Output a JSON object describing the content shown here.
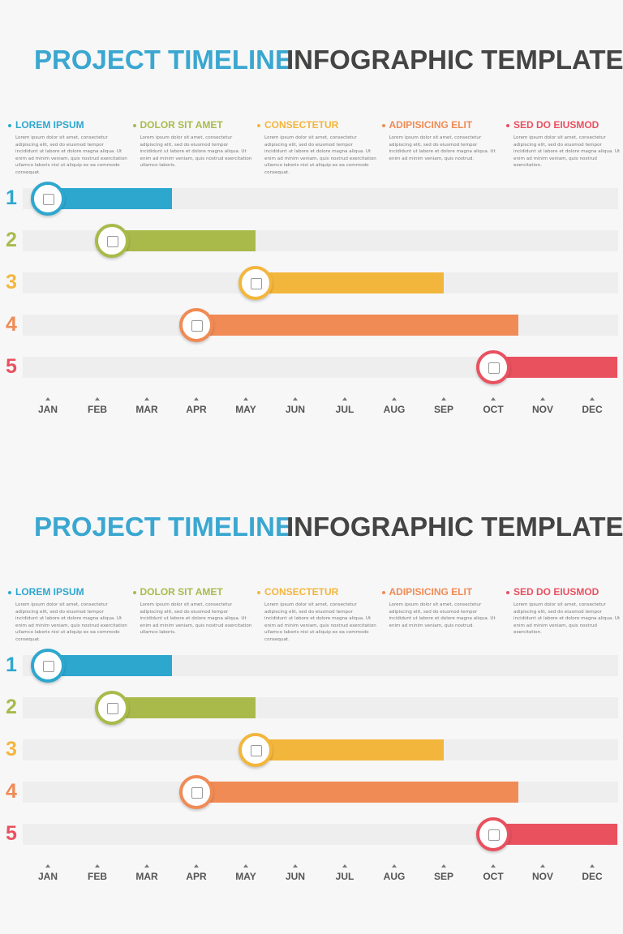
{
  "panels": [
    {
      "title_a": "PROJECT TIMELINE",
      "title_b": "INFOGRAPHIC TEMPLATE",
      "legend": [
        {
          "title": "LOREM IPSUM",
          "color": "#2ea7cf",
          "text": "Lorem ipsum dolor sit amet, consectetur adipiscing elit, sed do eiusmod tempor incididunt ut labore et dolore magna aliqua. Ut enim ad minim veniam, quis nostrud exercitation ullamco laboris nisi ut aliquip ex ea commodo consequat."
        },
        {
          "title": "DOLOR SIT AMET",
          "color": "#a9ba4b",
          "text": "Lorem ipsum dolor sit amet, consectetur adipiscing elit, sed do eiusmod tempor incididunt ut labore et dolore magna aliqua. Ut enim ad minim veniam, quis nostrud exercitation ullamco laboris."
        },
        {
          "title": "CONSECTETUR",
          "color": "#f3b63c",
          "text": "Lorem ipsum dolor sit amet, consectetur adipiscing elit, sed do eiusmod tempor incididunt ut labore et dolore magna aliqua. Ut enim ad minim veniam, quis nostrud exercitation ullamco laboris nisi ut aliquip ex ea commodo consequat."
        },
        {
          "title": "ADIPISICING ELIT",
          "color": "#f08b55",
          "text": "Lorem ipsum dolor sit amet, consectetur adipiscing elit, sed do eiusmod tempor incididunt ut labore et dolore magna aliqua. Ut enim ad minim veniam, quis nostrud."
        },
        {
          "title": "SED DO EIUSMOD",
          "color": "#e9515f",
          "text": "Lorem ipsum dolor sit amet, consectetur adipiscing elit, sed do eiusmod tempor incididunt ut labore et dolore magna aliqua. Ut enim ad minim veniam, quis nostrud exercitation."
        }
      ],
      "rows": [
        {
          "number": "1",
          "start": 0,
          "end": 2.5
        },
        {
          "number": "2",
          "start": 1.3,
          "end": 4.2
        },
        {
          "number": "3",
          "start": 4.2,
          "end": 8
        },
        {
          "number": "4",
          "start": 3,
          "end": 9.5
        },
        {
          "number": "5",
          "start": 9,
          "end": 11.5
        }
      ],
      "months": [
        "JAN",
        "FEB",
        "MAR",
        "APR",
        "MAY",
        "JUN",
        "JUL",
        "AUG",
        "SEP",
        "OCT",
        "NOV",
        "DEC"
      ]
    },
    {
      "title_a": "PROJECT TIMELINE",
      "title_b": "INFOGRAPHIC TEMPLATE",
      "legend": [
        {
          "title": "LOREM IPSUM",
          "color": "#2ea7cf",
          "text": "Lorem ipsum dolor sit amet, consectetur adipiscing elit, sed do eiusmod tempor incididunt ut labore et dolore magna aliqua. Ut enim ad minim veniam, quis nostrud exercitation ullamco laboris nisi ut aliquip ex ea commodo consequat."
        },
        {
          "title": "DOLOR SIT AMET",
          "color": "#a9ba4b",
          "text": "Lorem ipsum dolor sit amet, consectetur adipiscing elit, sed do eiusmod tempor incididunt ut labore et dolore magna aliqua. Ut enim ad minim veniam, quis nostrud exercitation ullamco laboris."
        },
        {
          "title": "CONSECTETUR",
          "color": "#f3b63c",
          "text": "Lorem ipsum dolor sit amet, consectetur adipiscing elit, sed do eiusmod tempor incididunt ut labore et dolore magna aliqua. Ut enim ad minim veniam, quis nostrud exercitation ullamco laboris nisi ut aliquip ex ea commodo consequat."
        },
        {
          "title": "ADIPISICING ELIT",
          "color": "#f08b55",
          "text": "Lorem ipsum dolor sit amet, consectetur adipiscing elit, sed do eiusmod tempor incididunt ut labore et dolore magna aliqua. Ut enim ad minim veniam, quis nostrud."
        },
        {
          "title": "SED DO EIUSMOD",
          "color": "#e9515f",
          "text": "Lorem ipsum dolor sit amet, consectetur adipiscing elit, sed do eiusmod tempor incididunt ut labore et dolore magna aliqua. Ut enim ad minim veniam, quis nostrud exercitation."
        }
      ],
      "rows": [
        {
          "number": "1",
          "start": 0,
          "end": 2.5
        },
        {
          "number": "2",
          "start": 1.3,
          "end": 4.2
        },
        {
          "number": "3",
          "start": 4.2,
          "end": 8
        },
        {
          "number": "4",
          "start": 3,
          "end": 9.5
        },
        {
          "number": "5",
          "start": 9,
          "end": 11.5
        }
      ],
      "months": [
        "JAN",
        "FEB",
        "MAR",
        "APR",
        "MAY",
        "JUN",
        "JUL",
        "AUG",
        "SEP",
        "OCT",
        "NOV",
        "DEC"
      ]
    }
  ]
}
